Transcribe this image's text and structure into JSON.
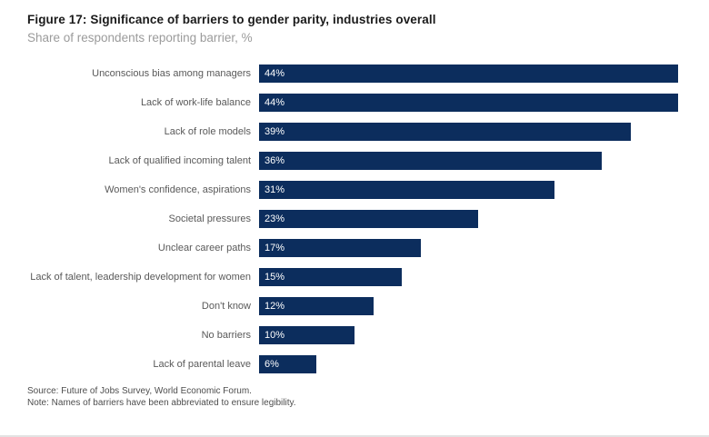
{
  "title": "Figure 17: Significance of barriers to gender parity, industries overall",
  "subtitle": "Share of respondents reporting barrier, %",
  "footer": {
    "source": "Source: Future of Jobs Survey, World Economic Forum.",
    "note": "Note: Names of barriers have been abbreviated to ensure legibility."
  },
  "colors": {
    "bar": "#0c2d5d",
    "value_text": "#ffffff"
  },
  "chart_data": {
    "type": "bar",
    "orientation": "horizontal",
    "title": "Figure 17: Significance of barriers to gender parity, industries overall",
    "subtitle": "Share of respondents reporting barrier, %",
    "xlabel": "",
    "ylabel": "",
    "xlim": [
      0,
      44
    ],
    "grid": false,
    "legend": false,
    "value_suffix": "%",
    "categories": [
      "Unconscious bias among managers",
      "Lack of work-life balance",
      "Lack of role models",
      "Lack of qualified incoming talent",
      "Women's confidence, aspirations",
      "Societal pressures",
      "Unclear career paths",
      "Lack of talent, leadership development for women",
      "Don't know",
      "No barriers",
      "Lack of parental leave"
    ],
    "values": [
      44,
      44,
      39,
      36,
      31,
      23,
      17,
      15,
      12,
      10,
      6
    ]
  }
}
